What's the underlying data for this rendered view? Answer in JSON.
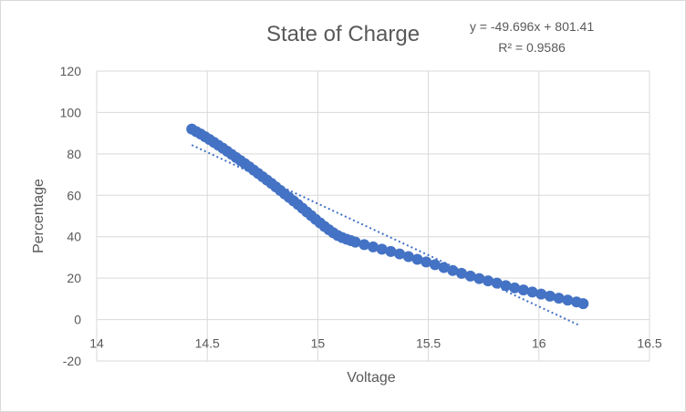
{
  "chart_data": {
    "type": "scatter",
    "title": "State of Charge",
    "xlabel": "Voltage",
    "ylabel": "Percentage",
    "xlim": [
      14,
      16.5
    ],
    "ylim": [
      -20,
      120
    ],
    "x_ticks": [
      "14",
      "14.5",
      "15",
      "15.5",
      "16",
      "16.5"
    ],
    "y_ticks": [
      "-20",
      "0",
      "20",
      "40",
      "60",
      "80",
      "100",
      "120"
    ],
    "grid": true,
    "legend": "none",
    "colors": {
      "points": "#4472c4",
      "trendline": "#4472c4",
      "grid": "#d9d9d9",
      "text": "#595959"
    },
    "trendline": {
      "type": "linear",
      "slope": -49.696,
      "intercept": 801.41,
      "x_range": [
        14.43,
        16.18
      ],
      "style": "dotted",
      "equation_label": "y = -49.696x + 801.41",
      "r2_label": "R² = 0.9586"
    },
    "series": [
      {
        "x": [
          14.43,
          14.45,
          14.47,
          14.49,
          14.51,
          14.53,
          14.55,
          14.57,
          14.59,
          14.61,
          14.63,
          14.65,
          14.67,
          14.69,
          14.71,
          14.73,
          14.75,
          14.77,
          14.79,
          14.81,
          14.83,
          14.85,
          14.87,
          14.89,
          14.91,
          14.93,
          14.95,
          14.97,
          14.99,
          15.01,
          15.03,
          15.05,
          15.07,
          15.09,
          15.11,
          15.13,
          15.15,
          15.17,
          15.21,
          15.25,
          15.29,
          15.33,
          15.37,
          15.41,
          15.45,
          15.49,
          15.53,
          15.57,
          15.61,
          15.65,
          15.69,
          15.73,
          15.77,
          15.81,
          15.85,
          15.89,
          15.93,
          15.97,
          16.01,
          16.05,
          16.09,
          16.13,
          16.17,
          16.2
        ],
        "y": [
          92,
          90.8,
          89.6,
          88.3,
          87,
          85.6,
          84.2,
          82.8,
          81.3,
          79.8,
          78.3,
          76.8,
          75.3,
          73.8,
          72.2,
          70.6,
          69,
          67.4,
          65.8,
          64.1,
          62.4,
          60.7,
          59,
          57.3,
          55.6,
          53.8,
          52,
          50.2,
          48.4,
          46.7,
          45,
          43.4,
          41.9,
          40.6,
          39.6,
          38.8,
          38.1,
          37.4,
          36.2,
          35.1,
          34,
          32.9,
          31.7,
          30.4,
          29.1,
          27.8,
          26.5,
          25.1,
          23.7,
          22.3,
          21,
          19.8,
          18.7,
          17.6,
          16.4,
          15.3,
          14.3,
          13.3,
          12.3,
          11.3,
          10.3,
          9.4,
          8.5,
          7.7
        ]
      }
    ]
  }
}
